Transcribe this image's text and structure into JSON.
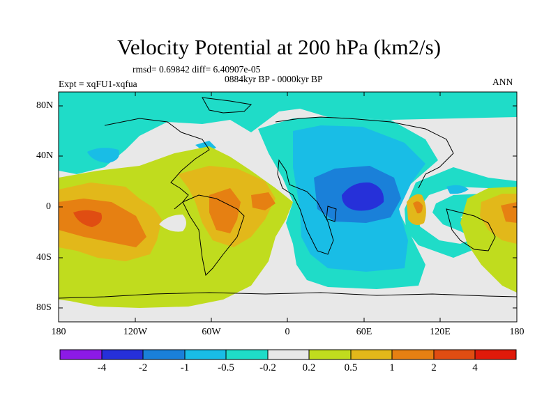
{
  "title": "Velocity Potential at 200 hPa (km2/s)",
  "rmsd_line": "rmsd= 0.69842 diff= 6.40907e-05",
  "period": "0884kyr BP - 0000kyr BP",
  "expt": "Expt = xqFU1-xqfua",
  "season": "ANN",
  "lat_labels": [
    "80N",
    "40N",
    "0",
    "40S",
    "80S"
  ],
  "lon_labels": [
    "180",
    "120W",
    "60W",
    "0",
    "60E",
    "120E",
    "180"
  ],
  "colorbar": {
    "labels": [
      "-4",
      "-2",
      "-1",
      "-0.5",
      "-0.2",
      "0.2",
      "0.5",
      "1",
      "2",
      "4"
    ],
    "colors": [
      "#8c1ae6",
      "#2630d9",
      "#1a80d9",
      "#19bde6",
      "#1fdcc8",
      "#e8e8e8",
      "#c0dc1e",
      "#e2b81a",
      "#e68012",
      "#e04d12",
      "#e01a0a"
    ]
  }
}
